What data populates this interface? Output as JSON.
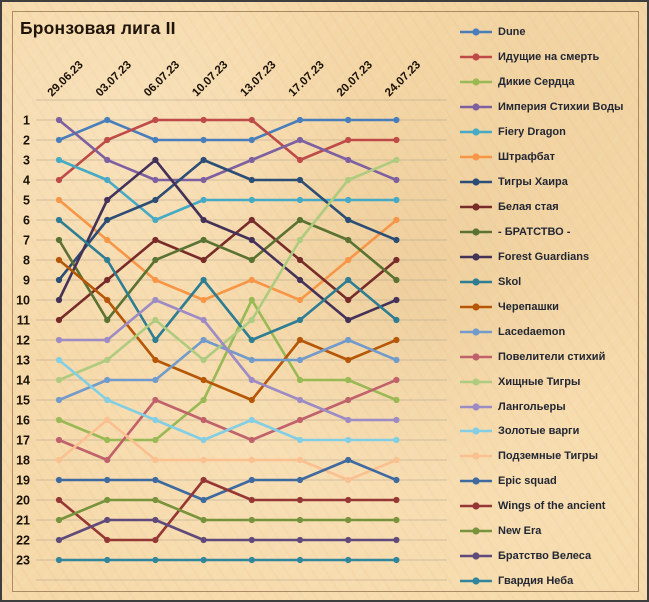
{
  "window": {
    "title": "Бронзовая лига II"
  },
  "chart_data": {
    "type": "line",
    "subtype": "bump-ranking",
    "title": "Бронзовая лига II",
    "xlabel": "",
    "ylabel": "",
    "x": [
      "29.06.23",
      "03.07.23",
      "06.07.23",
      "10.07.23",
      "13.07.23",
      "17.07.23",
      "20.07.23",
      "24.07.23"
    ],
    "y_ticks": [
      1,
      2,
      3,
      4,
      5,
      6,
      7,
      8,
      9,
      10,
      11,
      12,
      13,
      14,
      15,
      16,
      17,
      18,
      19,
      20,
      21,
      22,
      23
    ],
    "ylim": [
      1,
      23
    ],
    "y_inverted": true,
    "grid": true,
    "legend_position": "right",
    "series": [
      {
        "name": "Dune",
        "color": "#4A7EBB",
        "values": [
          2,
          1,
          2,
          2,
          2,
          1,
          1,
          1
        ]
      },
      {
        "name": "Идущие на смерть",
        "color": "#BE4B48",
        "values": [
          4,
          2,
          1,
          1,
          1,
          3,
          2,
          2
        ]
      },
      {
        "name": "Дикие Сердца",
        "color": "#98B954",
        "values": [
          16,
          17,
          17,
          15,
          10,
          14,
          14,
          15
        ]
      },
      {
        "name": "Империя Стихии Воды",
        "color": "#7D60A0",
        "values": [
          1,
          3,
          4,
          4,
          3,
          2,
          3,
          4
        ]
      },
      {
        "name": "Fiery Dragon",
        "color": "#46AAC5",
        "values": [
          3,
          4,
          6,
          5,
          5,
          5,
          5,
          5
        ]
      },
      {
        "name": "Штрафбат",
        "color": "#F79646",
        "values": [
          5,
          7,
          9,
          10,
          9,
          10,
          8,
          6
        ]
      },
      {
        "name": "Тигры Хаира",
        "color": "#2C4D75",
        "values": [
          9,
          6,
          5,
          3,
          4,
          4,
          6,
          7
        ]
      },
      {
        "name": "Белая стая",
        "color": "#772C2A",
        "values": [
          11,
          9,
          7,
          8,
          6,
          8,
          10,
          8
        ]
      },
      {
        "name": "- БРАТСТВО -",
        "color": "#5A7232",
        "values": [
          7,
          11,
          8,
          7,
          8,
          6,
          7,
          9
        ]
      },
      {
        "name": "Forest Guardians",
        "color": "#453259",
        "values": [
          10,
          5,
          3,
          6,
          7,
          9,
          11,
          10
        ]
      },
      {
        "name": "Skol",
        "color": "#2E7D92",
        "values": [
          6,
          8,
          12,
          9,
          12,
          11,
          9,
          11
        ]
      },
      {
        "name": "Черепашки",
        "color": "#B65708",
        "values": [
          8,
          10,
          13,
          14,
          15,
          12,
          13,
          12
        ]
      },
      {
        "name": "Lacedaemon",
        "color": "#729ACA",
        "values": [
          15,
          14,
          14,
          12,
          13,
          13,
          12,
          13
        ]
      },
      {
        "name": "Повелители стихий",
        "color": "#C0626B",
        "values": [
          17,
          18,
          15,
          16,
          17,
          16,
          15,
          14
        ]
      },
      {
        "name": "Хищные Тигры",
        "color": "#AECB7F",
        "values": [
          14,
          13,
          11,
          13,
          11,
          7,
          4,
          3
        ]
      },
      {
        "name": "Лангольеры",
        "color": "#9D8BC4",
        "values": [
          12,
          12,
          10,
          11,
          14,
          15,
          16,
          16
        ]
      },
      {
        "name": "Золотые варги",
        "color": "#84CEE4",
        "values": [
          13,
          15,
          16,
          17,
          16,
          17,
          17,
          17
        ]
      },
      {
        "name": "Подземные Тигры",
        "color": "#FAC090",
        "values": [
          18,
          16,
          18,
          18,
          18,
          18,
          19,
          18
        ]
      },
      {
        "name": "Epic squad",
        "color": "#3E6AA0",
        "values": [
          19,
          19,
          19,
          20,
          19,
          19,
          18,
          19
        ]
      },
      {
        "name": "Wings of the ancient",
        "color": "#953735",
        "values": [
          20,
          22,
          22,
          19,
          20,
          20,
          20,
          20
        ]
      },
      {
        "name": "New Era",
        "color": "#77933C",
        "values": [
          21,
          20,
          20,
          21,
          21,
          21,
          21,
          21
        ]
      },
      {
        "name": "Братство Велеса",
        "color": "#604A7B",
        "values": [
          22,
          21,
          21,
          22,
          22,
          22,
          22,
          22
        ]
      },
      {
        "name": "Гвардия Неба",
        "color": "#31869B",
        "values": [
          23,
          23,
          23,
          23,
          23,
          23,
          23,
          23
        ]
      }
    ]
  }
}
